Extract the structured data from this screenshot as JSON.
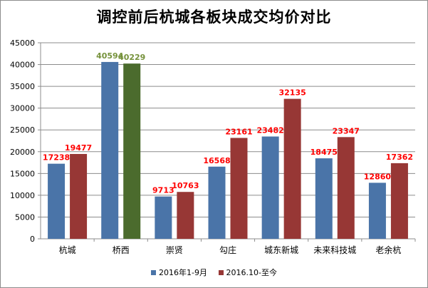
{
  "chart_data": {
    "type": "bar",
    "title": "调控前后杭城各板块成交均价对比",
    "xlabel": "",
    "ylabel": "",
    "categories": [
      "杭城",
      "桥西",
      "崇贤",
      "勾庄",
      "城东新城",
      "未来科技城",
      "老余杭"
    ],
    "series": [
      {
        "name": "2016年1-9月",
        "values": [
          17238,
          40594,
          9713,
          16568,
          23482,
          18475,
          12860
        ],
        "color": "#4a74a8"
      },
      {
        "name": "2016.10-至今",
        "values": [
          19477,
          40229,
          10763,
          23161,
          32135,
          23347,
          17362
        ],
        "color": "#973735"
      }
    ],
    "highlight": {
      "category_index": 1,
      "series1_color": "#4b6b2d",
      "label_color": "#76923c"
    },
    "label_color": "#ff0000",
    "ylim": [
      0,
      45000
    ],
    "yticks": [
      0,
      5000,
      10000,
      15000,
      20000,
      25000,
      30000,
      35000,
      40000,
      45000
    ],
    "grid": true,
    "legend_position": "bottom"
  }
}
